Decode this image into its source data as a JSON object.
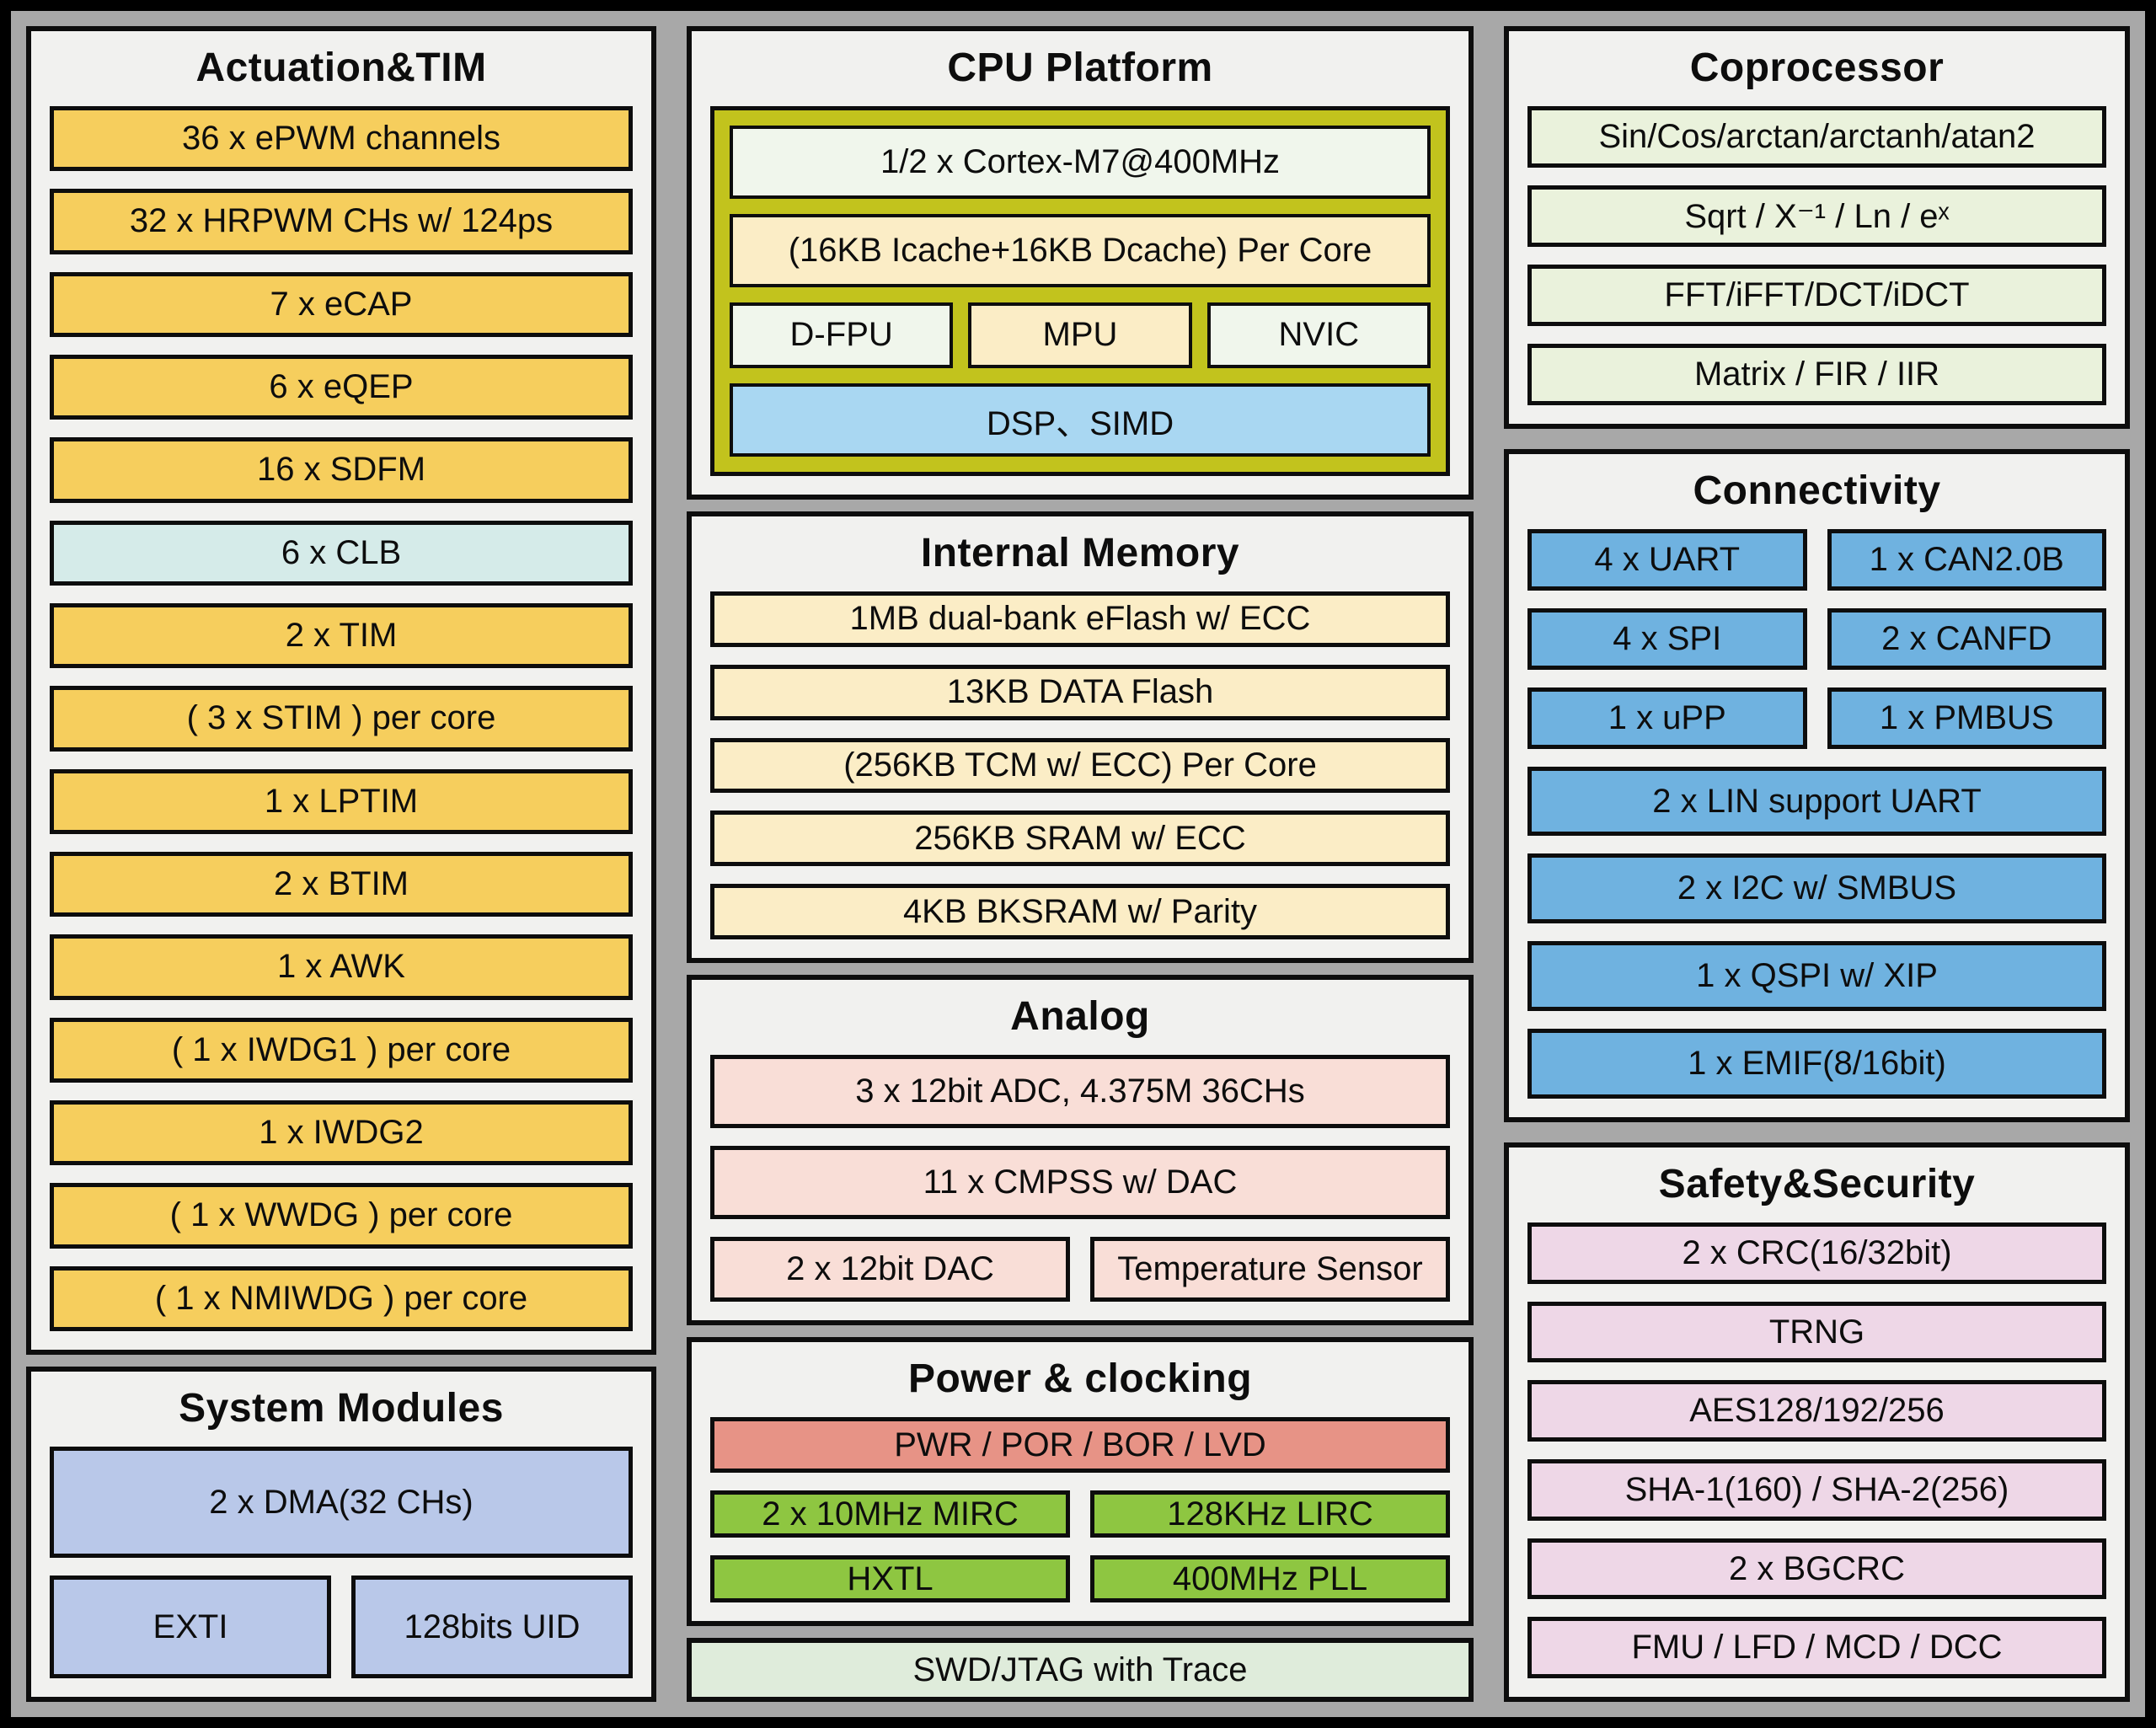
{
  "palette": {
    "canvas_gray": "#a8a8a8",
    "panel_bg": "#f1f1ef",
    "border_black": "#0d0d0d",
    "amber": "#f6ce5d",
    "cyan": "#d5ebe9",
    "periwinkle": "#b9c8e9",
    "olive": "#c2c31d",
    "pale_green": "#f0f6ec",
    "tan": "#fbedc6",
    "sky_blue": "#a9d7f2",
    "copro_green": "#eaf2dc",
    "conn_blue": "#6fb2e0",
    "safety_pink": "#eed7e7",
    "analog_pink": "#f9ded7",
    "salmon": "#e79386",
    "clock_green": "#8ec641",
    "swd_green": "#dfecdb"
  },
  "actuation": {
    "title": "Actuation&TIM",
    "items": [
      {
        "label": "36 x ePWM channels"
      },
      {
        "label": "32 x HRPWM CHs w/ 124ps"
      },
      {
        "label": "7 x eCAP"
      },
      {
        "label": "6 x eQEP"
      },
      {
        "label": "16 x SDFM"
      },
      {
        "label": "6 x CLB"
      },
      {
        "label": "2 x TIM"
      },
      {
        "label": "( 3 x STIM ) per core"
      },
      {
        "label": "1 x LPTIM"
      },
      {
        "label": "2 x BTIM"
      },
      {
        "label": "1 x AWK"
      },
      {
        "label": "( 1 x IWDG1 ) per core"
      },
      {
        "label": "1 x IWDG2"
      },
      {
        "label": "( 1 x WWDG ) per core"
      },
      {
        "label": "( 1 x NMIWDG ) per core"
      }
    ]
  },
  "system_modules": {
    "title": "System Modules",
    "items": [
      {
        "label": "2 x DMA(32 CHs)"
      },
      {
        "label": "EXTI"
      },
      {
        "label": "128bits UID"
      }
    ]
  },
  "cpu_platform": {
    "title": "CPU Platform",
    "core": "1/2 x Cortex-M7@400MHz",
    "cache": "(16KB Icache+16KB Dcache) Per Core",
    "units": [
      {
        "label": "D-FPU"
      },
      {
        "label": "MPU"
      },
      {
        "label": "NVIC"
      }
    ],
    "dsp": "DSP、SIMD"
  },
  "internal_memory": {
    "title": "Internal Memory",
    "items": [
      {
        "label": "1MB dual-bank eFlash w/ ECC"
      },
      {
        "label": "13KB DATA Flash"
      },
      {
        "label": "(256KB TCM w/ ECC) Per Core"
      },
      {
        "label": "256KB SRAM w/ ECC"
      },
      {
        "label": "4KB BKSRAM w/ Parity"
      }
    ]
  },
  "analog": {
    "title": "Analog",
    "items": [
      {
        "label": "3 x 12bit ADC, 4.375M 36CHs"
      },
      {
        "label": "11 x CMPSS w/ DAC"
      },
      {
        "label": "2 x 12bit DAC"
      },
      {
        "label": "Temperature Sensor"
      }
    ]
  },
  "power_clocking": {
    "title": "Power & clocking",
    "items": [
      {
        "label": "PWR / POR / BOR / LVD"
      },
      {
        "label": "2 x 10MHz MIRC"
      },
      {
        "label": "128KHz LIRC"
      },
      {
        "label": "HXTL"
      },
      {
        "label": "400MHz PLL"
      }
    ]
  },
  "debug": {
    "label": "SWD/JTAG with Trace"
  },
  "coprocessor": {
    "title": "Coprocessor",
    "items": [
      {
        "label": "Sin/Cos/arctan/arctanh/atan2"
      },
      {
        "label": "Sqrt / X⁻¹ / Ln / eˣ"
      },
      {
        "label": "FFT/iFFT/DCT/iDCT"
      },
      {
        "label": "Matrix / FIR / IIR"
      }
    ]
  },
  "connectivity": {
    "title": "Connectivity",
    "pairs": [
      [
        {
          "label": "4 x UART"
        },
        {
          "label": "1 x CAN2.0B"
        }
      ],
      [
        {
          "label": "4 x SPI"
        },
        {
          "label": "2 x CANFD"
        }
      ],
      [
        {
          "label": "1 x uPP"
        },
        {
          "label": "1 x PMBUS"
        }
      ]
    ],
    "rows": [
      {
        "label": "2 x LIN support UART"
      },
      {
        "label": "2 x I2C w/ SMBUS"
      },
      {
        "label": "1 x QSPI w/ XIP"
      },
      {
        "label": "1 x EMIF(8/16bit)"
      }
    ]
  },
  "safety_security": {
    "title": "Safety&Security",
    "items": [
      {
        "label": "2 x CRC(16/32bit)"
      },
      {
        "label": "TRNG"
      },
      {
        "label": "AES128/192/256"
      },
      {
        "label": "SHA-1(160) / SHA-2(256)"
      },
      {
        "label": "2 x BGCRC"
      },
      {
        "label": "FMU / LFD / MCD / DCC"
      }
    ]
  }
}
